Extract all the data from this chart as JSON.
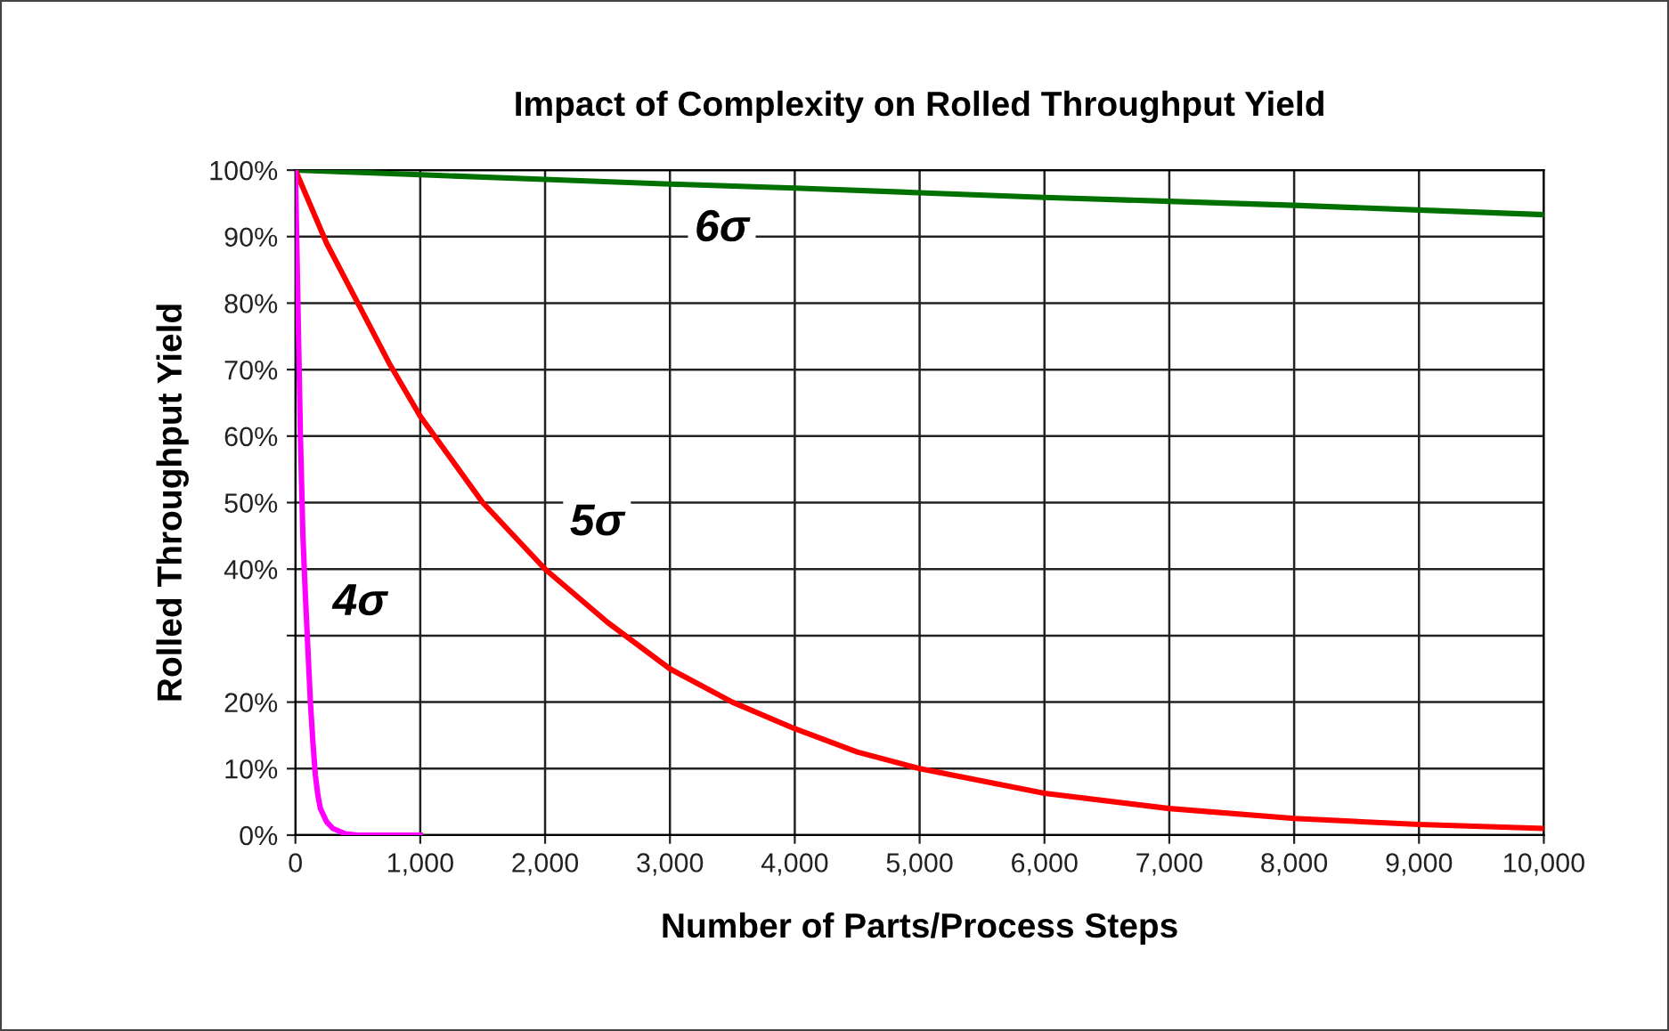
{
  "chart_data": {
    "type": "line",
    "title": "Impact of Complexity on Rolled Throughput Yield",
    "xlabel": "Number of Parts/Process Steps",
    "ylabel": "Rolled Throughput Yield",
    "xlim": [
      0,
      10000
    ],
    "ylim": [
      0,
      100
    ],
    "xticks": [
      {
        "value": 0,
        "label": "0"
      },
      {
        "value": 1000,
        "label": "1,000"
      },
      {
        "value": 2000,
        "label": "2,000"
      },
      {
        "value": 3000,
        "label": "3,000"
      },
      {
        "value": 4000,
        "label": "4,000"
      },
      {
        "value": 5000,
        "label": "5,000"
      },
      {
        "value": 6000,
        "label": "6,000"
      },
      {
        "value": 7000,
        "label": "7,000"
      },
      {
        "value": 8000,
        "label": "8,000"
      },
      {
        "value": 9000,
        "label": "9,000"
      },
      {
        "value": 10000,
        "label": "10,000"
      }
    ],
    "yticks": [
      {
        "value": 0,
        "label": "0%"
      },
      {
        "value": 10,
        "label": "10%"
      },
      {
        "value": 20,
        "label": "20%"
      },
      {
        "value": 30,
        "label": null
      },
      {
        "value": 40,
        "label": "40%"
      },
      {
        "value": 50,
        "label": "50%"
      },
      {
        "value": 60,
        "label": "60%"
      },
      {
        "value": 70,
        "label": "70%"
      },
      {
        "value": 80,
        "label": "80%"
      },
      {
        "value": 90,
        "label": "90%"
      },
      {
        "value": 100,
        "label": "100%"
      }
    ],
    "grid": true,
    "marker": "none",
    "line_style": "solid",
    "series": [
      {
        "name": "6σ",
        "color": "#007000",
        "x": [
          0,
          1000,
          2000,
          3000,
          4000,
          5000,
          6000,
          7000,
          8000,
          9000,
          10000
        ],
        "values": [
          100,
          99.3,
          98.6,
          97.9,
          97.3,
          96.6,
          95.9,
          95.3,
          94.7,
          94.0,
          93.3
        ]
      },
      {
        "name": "5σ",
        "color": "#ff0000",
        "x": [
          0,
          250,
          500,
          750,
          1000,
          1500,
          2000,
          2500,
          3000,
          3500,
          4000,
          4500,
          5000,
          6000,
          7000,
          8000,
          9000,
          10000
        ],
        "values": [
          100,
          89,
          80,
          71,
          63,
          50,
          40,
          32,
          25,
          20,
          16,
          12.5,
          10,
          6.3,
          4,
          2.5,
          1.6,
          1
        ]
      },
      {
        "name": "4σ",
        "color": "#ff00ff",
        "x": [
          0,
          20,
          40,
          60,
          80,
          100,
          120,
          140,
          160,
          180,
          200,
          250,
          300,
          400,
          500,
          1000
        ],
        "values": [
          100,
          80,
          60,
          45,
          36,
          28,
          20,
          14,
          9,
          6,
          4,
          2,
          1,
          0.2,
          0,
          0
        ]
      }
    ]
  }
}
